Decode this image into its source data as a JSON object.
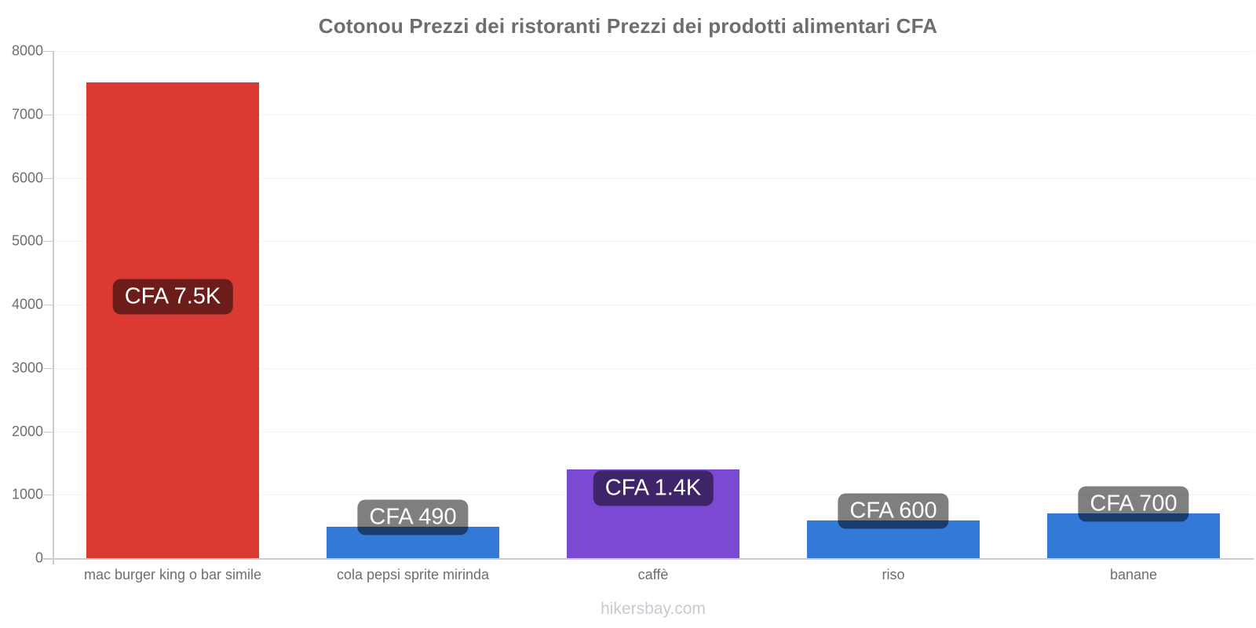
{
  "title": "Cotonou Prezzi dei ristoranti Prezzi dei prodotti alimentari CFA",
  "footer": "hikersbay.com",
  "colors": {
    "bar_red": "#db3a33",
    "bar_blue": "#3379d8",
    "bar_purple": "#7c49d2",
    "value_label_bg": "rgba(0,0,0,0.5)",
    "value_label_text": "#ffffff",
    "axis_line": "#cccccc",
    "gridline": "#f3f3f3",
    "title_text": "#6e6e6e",
    "tick_text": "#6e6e6e",
    "footer_text": "#c9c9d1"
  },
  "chart_data": {
    "type": "bar",
    "title": "Cotonou Prezzi dei ristoranti Prezzi dei prodotti alimentari CFA",
    "categories": [
      "mac burger king o bar simile",
      "cola pepsi sprite mirinda",
      "caffè",
      "riso",
      "banane"
    ],
    "values": [
      7500,
      490,
      1400,
      600,
      700
    ],
    "value_labels": [
      "CFA 7.5K",
      "CFA 490",
      "CFA 1.4K",
      "CFA 600",
      "CFA 700"
    ],
    "bar_colors": [
      "#db3a33",
      "#3379d8",
      "#7c49d2",
      "#3379d8",
      "#3379d8"
    ],
    "currency": "CFA",
    "xlabel": "",
    "ylabel": "",
    "ylim": [
      0,
      8000
    ],
    "yticks": [
      0,
      1000,
      2000,
      3000,
      4000,
      5000,
      6000,
      7000,
      8000
    ],
    "grid": "horizontal",
    "legend": "none",
    "watermark": "hikersbay.com"
  }
}
